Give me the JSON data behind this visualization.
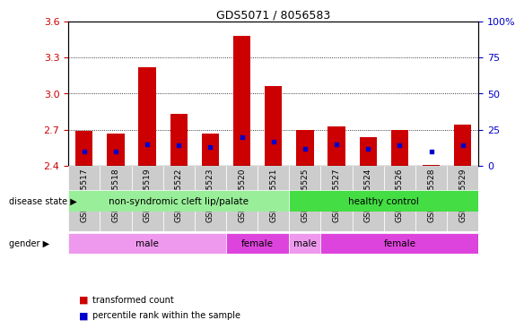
{
  "title": "GDS5071 / 8056583",
  "samples": [
    "GSM1045517",
    "GSM1045518",
    "GSM1045519",
    "GSM1045522",
    "GSM1045523",
    "GSM1045520",
    "GSM1045521",
    "GSM1045525",
    "GSM1045527",
    "GSM1045524",
    "GSM1045526",
    "GSM1045528",
    "GSM1045529"
  ],
  "transformed_count": [
    2.69,
    2.67,
    3.22,
    2.83,
    2.67,
    3.48,
    3.06,
    2.7,
    2.73,
    2.64,
    2.7,
    2.41,
    2.74
  ],
  "percentile_rank": [
    10,
    10,
    15,
    14,
    13,
    20,
    17,
    12,
    15,
    12,
    14,
    10,
    14
  ],
  "ylim_left": [
    2.4,
    3.6
  ],
  "ylim_right": [
    0,
    100
  ],
  "yticks_left": [
    2.4,
    2.7,
    3.0,
    3.3,
    3.6
  ],
  "yticks_right": [
    0,
    25,
    50,
    75,
    100
  ],
  "bar_color": "#cc0000",
  "dot_color": "#0000cc",
  "bar_bottom": 2.4,
  "disease_state_groups": [
    {
      "label": "non-syndromic cleft lip/palate",
      "start": 0,
      "end": 7,
      "color": "#99ee99"
    },
    {
      "label": "healthy control",
      "start": 7,
      "end": 13,
      "color": "#44dd44"
    }
  ],
  "gender_groups": [
    {
      "label": "male",
      "start": 0,
      "end": 5,
      "color": "#ee99ee"
    },
    {
      "label": "female",
      "start": 5,
      "end": 7,
      "color": "#dd44dd"
    },
    {
      "label": "male",
      "start": 7,
      "end": 8,
      "color": "#ee99ee"
    },
    {
      "label": "female",
      "start": 8,
      "end": 13,
      "color": "#dd44dd"
    }
  ],
  "legend_bar_label": "transformed count",
  "legend_dot_label": "percentile rank within the sample",
  "plot_bg": "#ffffff",
  "fig_bg": "#ffffff",
  "xtick_bg": "#cccccc",
  "grid_color": "#000000"
}
